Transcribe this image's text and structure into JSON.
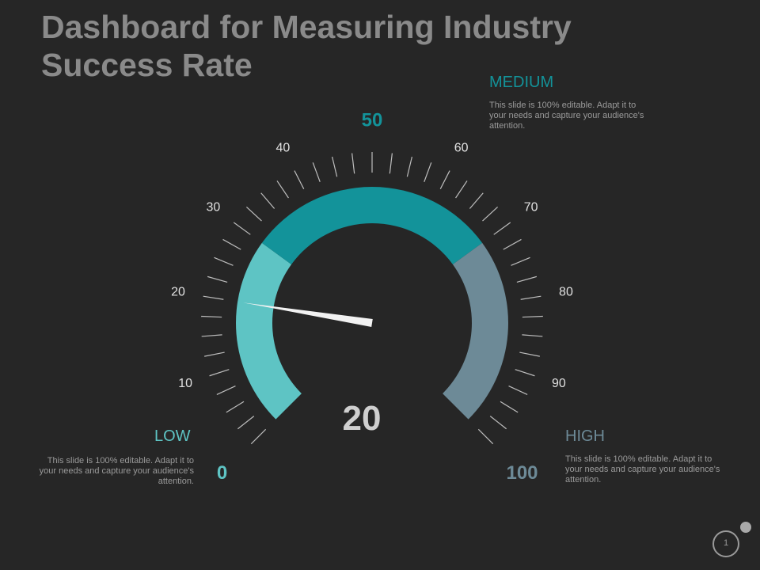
{
  "title": "Dashboard for Measuring Industry Success Rate",
  "zones": {
    "low": {
      "label": "LOW",
      "description": "This slide is 100% editable. Adapt it to your needs and capture your audience's attention.",
      "color": "#5ec4c4"
    },
    "medium": {
      "label": "MEDIUM",
      "description": "This slide is 100% editable. Adapt it to your needs and capture your audience's attention.",
      "color": "#13939a"
    },
    "high": {
      "label": "HIGH",
      "description": "This slide is 100% editable. Adapt it to your needs and capture your audience's attention.",
      "color": "#6d8a97"
    }
  },
  "chart_data": {
    "type": "gauge",
    "min": 0,
    "max": 100,
    "value": 20,
    "value_label": "20",
    "tick_labels": [
      "0",
      "10",
      "20",
      "30",
      "40",
      "50",
      "60",
      "70",
      "80",
      "90",
      "100"
    ],
    "zones": [
      {
        "name": "LOW",
        "from": 0,
        "to": 30
      },
      {
        "name": "MEDIUM",
        "from": 30,
        "to": 70
      },
      {
        "name": "HIGH",
        "from": 70,
        "to": 100
      }
    ]
  },
  "page": {
    "number": "1"
  },
  "colors": {
    "title": "#8a8a8a",
    "needle": "#f2f2f2",
    "tick": "#bdbdbd",
    "value_text": "#cfcfcf",
    "scale_text": "#e0e0e0"
  }
}
